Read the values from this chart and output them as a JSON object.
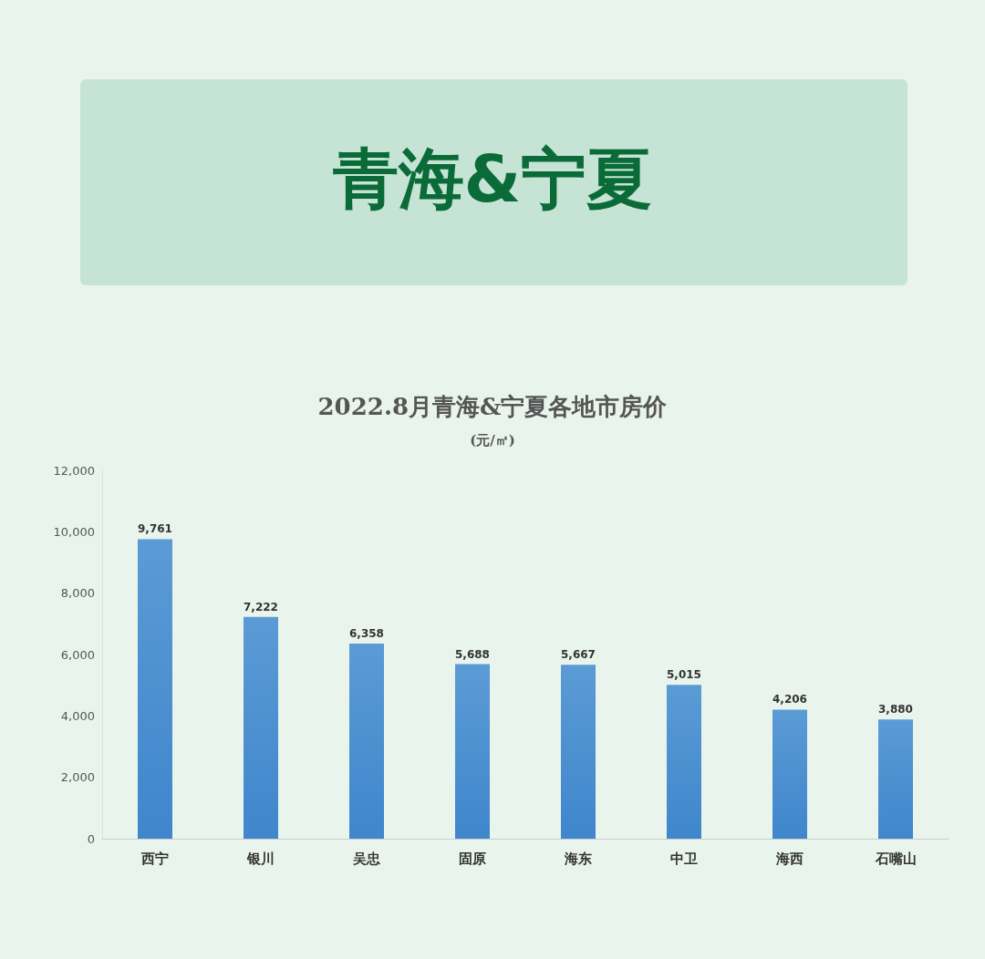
{
  "chart_data": {
    "type": "bar",
    "title": "青海&宁夏",
    "subtitle": "2022.8月青海&宁夏各地市房价",
    "annotations": [
      "(元/㎡)"
    ],
    "categories": [
      "西宁",
      "银川",
      "吴忠",
      "固原",
      "海东",
      "中卫",
      "海西",
      "石嘴山"
    ],
    "values": [
      9761,
      7222,
      6358,
      5688,
      5667,
      5015,
      4206,
      3880
    ],
    "color": "#5b9bd5",
    "value_labels": [
      "9,761",
      "7,222",
      "6,358",
      "5,688",
      "5,667",
      "5,015",
      "4,206",
      "3,880"
    ],
    "ylim": [
      0,
      12000
    ],
    "yticks": [
      0,
      {
        "value": 2000,
        "label": "2,000"
      },
      {
        "value": 4000,
        "label": "4,000"
      },
      {
        "value": 6000,
        "label": "6,000"
      },
      {
        "value": 8000,
        "label": "8,000"
      },
      {
        "value": 10000,
        "label": "10,000"
      },
      {
        "value": 12000,
        "label": "12,000"
      }
    ],
    "grid": false
  }
}
